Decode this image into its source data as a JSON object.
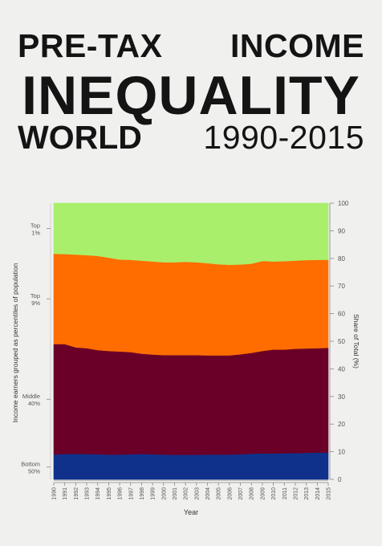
{
  "title": {
    "word1": "PRE-TAX",
    "word2": "INCOME",
    "line2": "INEQUALITY",
    "word3": "WORLD",
    "years": "1990-2015"
  },
  "chart_data": {
    "type": "area",
    "stacked": true,
    "x": [
      1990,
      1991,
      1992,
      1993,
      1994,
      1995,
      1996,
      1997,
      1998,
      1999,
      2000,
      2001,
      2002,
      2003,
      2004,
      2005,
      2006,
      2007,
      2008,
      2009,
      2010,
      2011,
      2012,
      2013,
      2014,
      2015
    ],
    "x_tick_labels": [
      "1990",
      "1991",
      "1992",
      "1993",
      "1994",
      "1995",
      "1996",
      "1997",
      "1998",
      "1999",
      "2000",
      "2001",
      "2002",
      "2003",
      "2004",
      "2005",
      "2006",
      "2007",
      "2008",
      "2009",
      "2010",
      "2011",
      "2012",
      "2013",
      "2014",
      "2015"
    ],
    "xlabel": "Year",
    "ylabel": "Share of Total (%)",
    "ylim": [
      0,
      100
    ],
    "y_ticks": [
      0,
      10,
      20,
      30,
      40,
      50,
      60,
      70,
      80,
      90,
      100
    ],
    "left_axis_label": "Income earners grouped as percentiles of population",
    "series": [
      {
        "name": "Bottom 50%",
        "label_lines": [
          "Bottom",
          "50%"
        ],
        "color": "#0f318c",
        "values": [
          9.0,
          9.2,
          9.2,
          9.2,
          9.1,
          9.0,
          9.0,
          9.1,
          9.2,
          9.1,
          9.0,
          8.9,
          8.9,
          8.9,
          9.0,
          9.0,
          9.0,
          9.1,
          9.3,
          9.4,
          9.4,
          9.5,
          9.5,
          9.6,
          9.7,
          9.7
        ]
      },
      {
        "name": "Middle 40%",
        "label_lines": [
          "Middle",
          "40%"
        ],
        "color": "#6a0027",
        "values": [
          40.0,
          39.8,
          38.6,
          38.3,
          37.7,
          37.5,
          37.3,
          37.0,
          36.3,
          36.1,
          36.0,
          36.1,
          36.1,
          36.1,
          35.9,
          35.9,
          35.9,
          36.2,
          36.5,
          37.1,
          37.6,
          37.5,
          37.8,
          37.8,
          37.8,
          37.9
        ]
      },
      {
        "name": "Top 9%",
        "label_lines": [
          "Top",
          "9%"
        ],
        "color": "#ff6d00",
        "values": [
          32.7,
          32.6,
          33.6,
          33.7,
          34.1,
          33.8,
          33.3,
          33.4,
          33.7,
          33.7,
          33.6,
          33.6,
          33.8,
          33.6,
          33.4,
          33.0,
          32.8,
          32.5,
          32.3,
          32.6,
          31.9,
          32.0,
          31.9,
          32.0,
          32.0,
          31.9
        ]
      },
      {
        "name": "Top 1%",
        "label_lines": [
          "Top",
          "1%"
        ],
        "color": "#a9ef6b",
        "values": [
          18.3,
          18.4,
          18.6,
          18.8,
          19.1,
          19.7,
          20.4,
          20.5,
          20.8,
          21.1,
          21.4,
          21.4,
          21.2,
          21.4,
          21.7,
          22.1,
          22.3,
          22.2,
          21.9,
          20.9,
          21.1,
          21.0,
          20.8,
          20.6,
          20.5,
          20.5
        ]
      }
    ]
  }
}
